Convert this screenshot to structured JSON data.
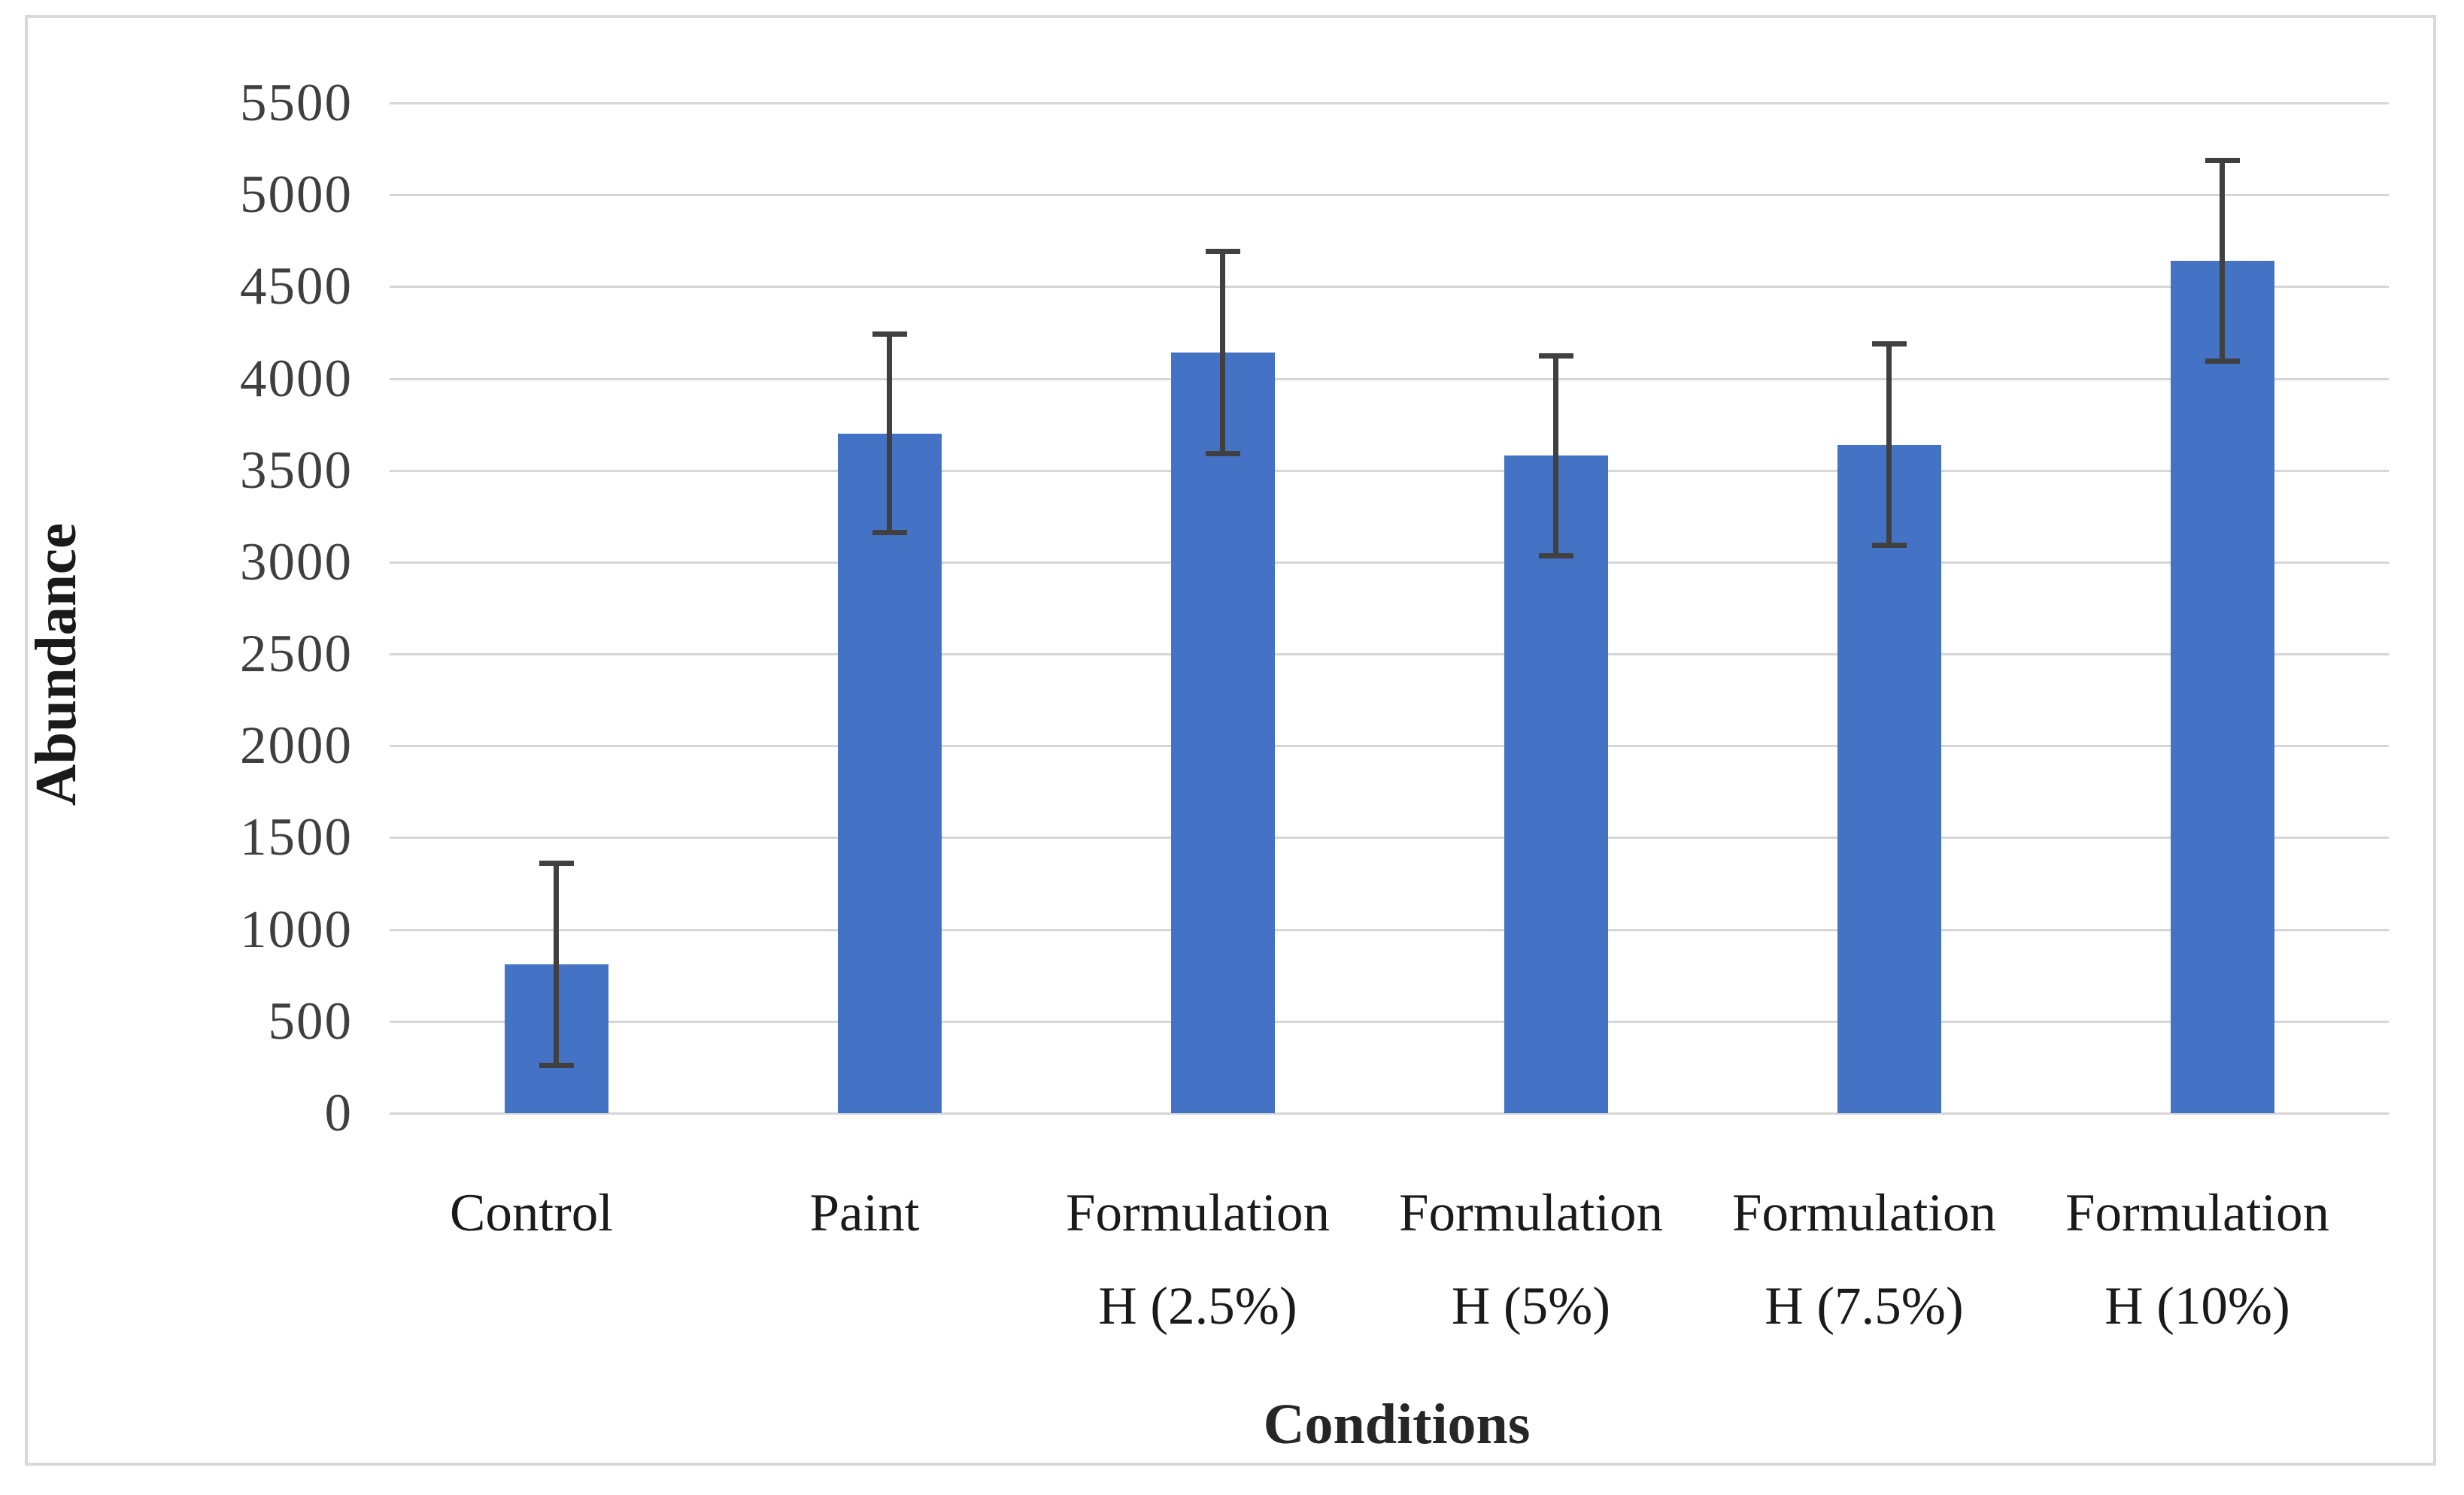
{
  "chart_data": {
    "type": "bar",
    "title": "",
    "xlabel": "Conditions",
    "ylabel": "Abundance",
    "categories": [
      "Control",
      "Paint",
      "Formulation\nH (2.5%)",
      "Formulation\nH (5%)",
      "Formulation\nH (7.5%)",
      "Formulation\nH (10%)"
    ],
    "values": [
      810,
      3700,
      4140,
      3580,
      3640,
      4640
    ],
    "error_bars": [
      550,
      540,
      550,
      545,
      550,
      545
    ],
    "ylim": [
      0,
      5500
    ],
    "ytick_step": 500,
    "ytick_labels": [
      "0",
      "500",
      "1000",
      "1500",
      "2000",
      "2500",
      "3000",
      "3500",
      "4000",
      "4500",
      "5000",
      "5500"
    ],
    "grid": "horizontal",
    "legend": "none",
    "colors": {
      "bar_fill": "#4472c4",
      "error_bar": "#404040",
      "gridline": "#d6d6d6",
      "tick_text": "#3f3f3f",
      "label_text": "#1a1a1a",
      "frame_border": "#d9d9d9"
    }
  }
}
